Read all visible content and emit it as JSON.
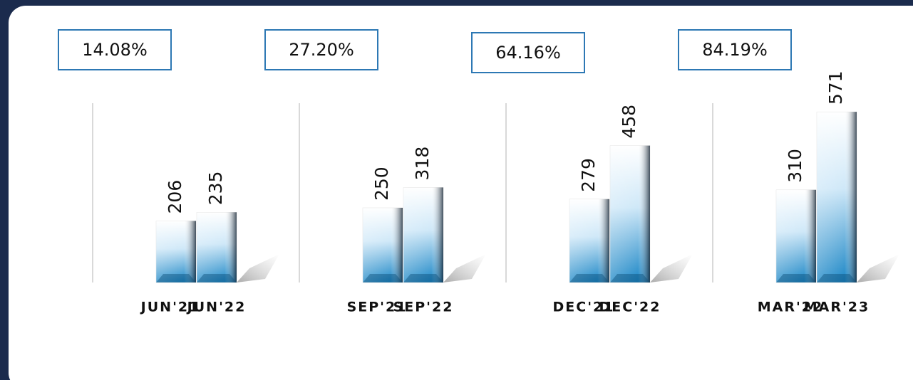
{
  "chart_data": [
    {
      "type": "bar",
      "annotation": "14.08%",
      "categories": [
        "JUN'21",
        "JUN'22"
      ],
      "values": [
        206,
        235
      ]
    },
    {
      "type": "bar",
      "annotation": "27.20%",
      "categories": [
        "SEP'21",
        "SEP'22"
      ],
      "values": [
        250,
        318
      ]
    },
    {
      "type": "bar",
      "annotation": "64.16%",
      "categories": [
        "DEC'21",
        "DEC'22"
      ],
      "values": [
        279,
        458
      ]
    },
    {
      "type": "bar",
      "annotation": "84.19%",
      "categories": [
        "MAR'22",
        "MAR'23"
      ],
      "values": [
        310,
        571
      ]
    }
  ]
}
